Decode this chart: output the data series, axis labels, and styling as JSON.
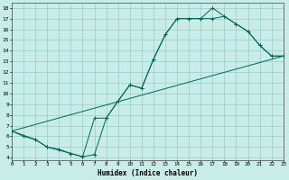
{
  "xlabel": "Humidex (Indice chaleur)",
  "bg_color": "#c8ece6",
  "grid_color": "#99cccc",
  "line_color": "#006655",
  "line1_x": [
    0,
    1,
    2,
    3,
    4,
    5,
    6,
    7,
    8,
    9,
    10,
    11,
    12,
    13,
    14,
    15,
    16,
    17,
    18,
    19,
    20,
    21,
    22,
    23
  ],
  "line1_y": [
    6.5,
    6.0,
    5.7,
    5.0,
    4.8,
    4.4,
    4.1,
    4.3,
    7.7,
    9.3,
    10.8,
    10.5,
    13.2,
    15.5,
    17.0,
    17.0,
    17.0,
    18.0,
    17.2,
    16.5,
    15.8,
    14.5,
    13.5,
    13.5
  ],
  "line2_x": [
    0,
    2,
    3,
    5,
    6,
    7,
    8,
    9,
    10,
    11,
    12,
    13,
    14,
    15,
    16,
    17,
    18,
    19,
    20,
    21,
    22,
    23
  ],
  "line2_y": [
    6.5,
    5.7,
    5.0,
    4.4,
    4.1,
    7.7,
    7.7,
    9.3,
    10.8,
    10.5,
    13.2,
    15.5,
    17.0,
    17.0,
    17.0,
    17.0,
    17.2,
    16.5,
    15.8,
    14.5,
    13.5,
    13.5
  ],
  "line3_x": [
    0,
    23
  ],
  "line3_y": [
    6.5,
    13.5
  ],
  "xlim": [
    0,
    23
  ],
  "ylim": [
    3.8,
    18.5
  ],
  "yticks": [
    4,
    5,
    6,
    7,
    8,
    9,
    10,
    11,
    12,
    13,
    14,
    15,
    16,
    17,
    18
  ],
  "xticks": [
    0,
    1,
    2,
    3,
    4,
    5,
    6,
    7,
    8,
    9,
    10,
    11,
    12,
    13,
    14,
    15,
    16,
    17,
    18,
    19,
    20,
    21,
    22,
    23
  ]
}
